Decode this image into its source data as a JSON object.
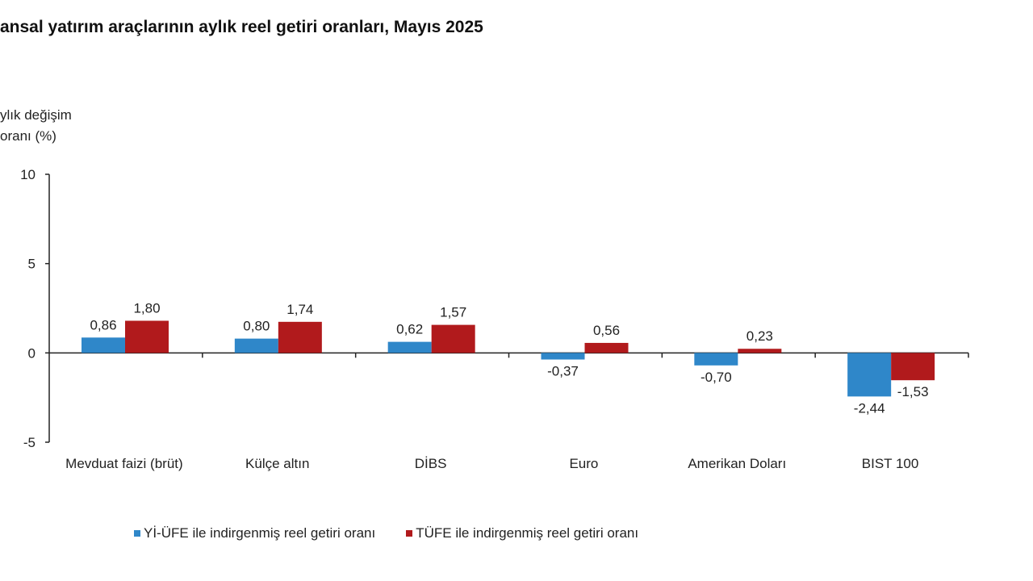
{
  "chart_data": {
    "type": "bar",
    "title": "ansal yatırım araçlarının aylık reel getiri oranları, Mayıs 2025",
    "ylabel_lines": [
      "ylık değişim",
      "oranı (%)"
    ],
    "xlabel": "",
    "ylim": [
      -5,
      10
    ],
    "yticks": [
      10,
      5,
      0,
      -5
    ],
    "grid": false,
    "legend_position": "bottom",
    "categories": [
      "Mevduat faizi (brüt)",
      "Külçe altın",
      "DİBS",
      "Euro",
      "Amerikan Doları",
      "BIST 100"
    ],
    "series": [
      {
        "name": "Yİ-ÜFE ile indirgenmiş reel getiri oranı",
        "color": "#2f87c9",
        "values": [
          0.86,
          0.8,
          0.62,
          -0.37,
          -0.7,
          -2.44
        ],
        "labels": [
          "0,86",
          "0,80",
          "0,62",
          "-0,37",
          "-0,70",
          "-2,44"
        ]
      },
      {
        "name": "TÜFE ile indirgenmiş reel getiri oranı",
        "color": "#b11a1c",
        "values": [
          1.8,
          1.74,
          1.57,
          0.56,
          0.23,
          -1.53
        ],
        "labels": [
          "1,80",
          "1,74",
          "1,57",
          "0,56",
          "0,23",
          "-1,53"
        ]
      }
    ]
  }
}
